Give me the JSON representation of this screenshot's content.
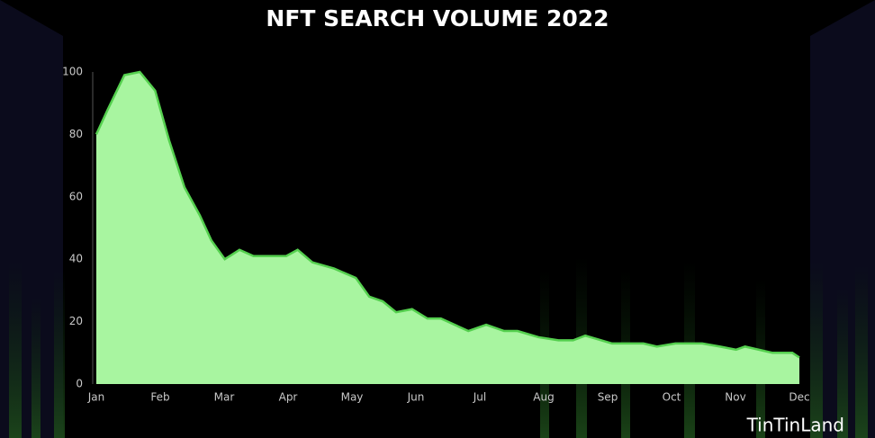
{
  "chart_data": {
    "type": "area",
    "title": "NFT SEARCH VOLUME 2022",
    "x": [
      0,
      0.18,
      0.44,
      0.68,
      0.92,
      1.14,
      1.38,
      1.62,
      1.8,
      2.01,
      2.24,
      2.46,
      2.97,
      3.15,
      3.38,
      3.72,
      4.06,
      4.27,
      4.48,
      4.69,
      4.94,
      5.18,
      5.39,
      5.82,
      6.1,
      6.38,
      6.59,
      6.92,
      7.23,
      7.46,
      7.65,
      8.07,
      8.56,
      8.77,
      9.06,
      9.48,
      9.76,
      10.01,
      10.15,
      10.58,
      10.89,
      11
    ],
    "series": [
      {
        "color": "#a8f5a0",
        "values": [
          80,
          88,
          99,
          100,
          94,
          78,
          63,
          54,
          46,
          40,
          43,
          41,
          41,
          43,
          39,
          37,
          34,
          28,
          26.5,
          23,
          24,
          21,
          21,
          17,
          19,
          17,
          17,
          15,
          14,
          14,
          15.5,
          13,
          13,
          12,
          13,
          13,
          12,
          11,
          12,
          10,
          10,
          8.5
        ]
      }
    ],
    "xlim": [
      0,
      11
    ],
    "xticks": [
      {
        "value": 0,
        "label": "Jan"
      },
      {
        "value": 1,
        "label": "Feb"
      },
      {
        "value": 2,
        "label": "Mar"
      },
      {
        "value": 3,
        "label": "Apr"
      },
      {
        "value": 4,
        "label": "May"
      },
      {
        "value": 5,
        "label": "Jun"
      },
      {
        "value": 6,
        "label": "Jul"
      },
      {
        "value": 7,
        "label": "Aug"
      },
      {
        "value": 8,
        "label": "Sep"
      },
      {
        "value": 9,
        "label": "Oct"
      },
      {
        "value": 10,
        "label": "Nov"
      },
      {
        "value": 11,
        "label": "Dec"
      }
    ],
    "ylim": [
      0,
      100
    ],
    "yticks": [
      0,
      20,
      40,
      60,
      80,
      100
    ],
    "grid": false
  },
  "watermark": "TinTinLand"
}
